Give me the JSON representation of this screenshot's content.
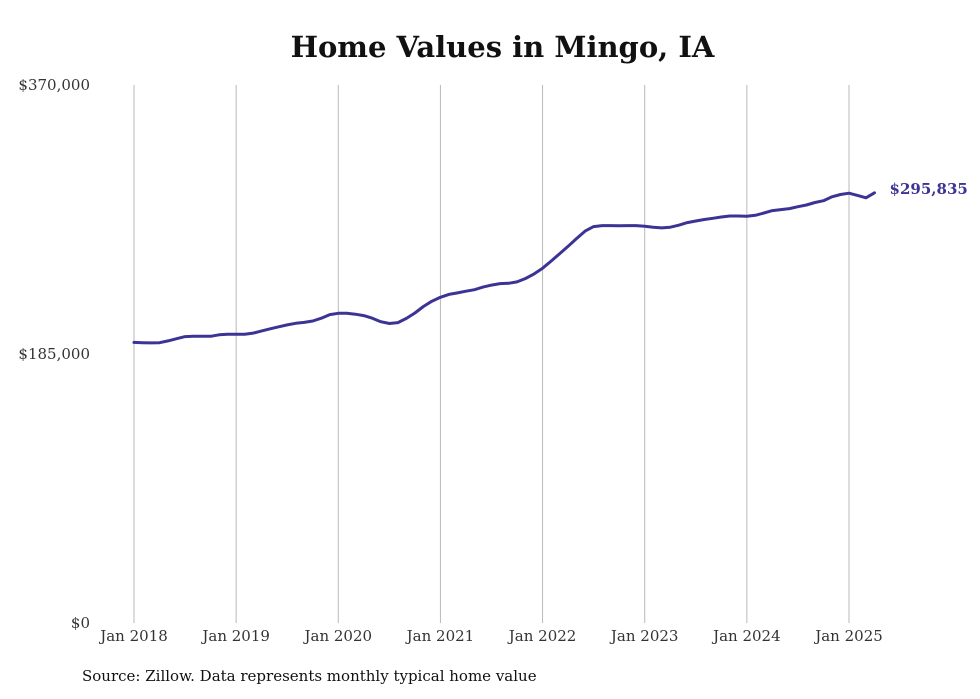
{
  "chart_data": {
    "type": "line",
    "title": "Home Values in Mingo, IA",
    "xlabel": "",
    "ylabel": "",
    "ylim": [
      0,
      370000
    ],
    "y_ticks": [
      0,
      185000,
      370000
    ],
    "y_tick_labels": [
      "$0",
      "$185,000",
      "$370,000"
    ],
    "x_tick_labels": [
      "Jan 2018",
      "Jan 2019",
      "Jan 2020",
      "Jan 2021",
      "Jan 2022",
      "Jan 2023",
      "Jan 2024",
      "Jan 2025"
    ],
    "xlim": [
      "2018-01",
      "2025-04"
    ],
    "grid": "vertical",
    "legend": "none",
    "line_color": "#3b3494",
    "end_label": "$295,835",
    "series": [
      {
        "x": [
          "2018-01",
          "2018-02",
          "2018-03",
          "2018-04",
          "2018-05",
          "2018-06",
          "2018-07",
          "2018-08",
          "2018-09",
          "2018-10",
          "2018-11",
          "2018-12",
          "2019-01",
          "2019-02",
          "2019-03",
          "2019-04",
          "2019-05",
          "2019-06",
          "2019-07",
          "2019-08",
          "2019-09",
          "2019-10",
          "2019-11",
          "2019-12",
          "2020-01",
          "2020-02",
          "2020-03",
          "2020-04",
          "2020-05",
          "2020-06",
          "2020-07",
          "2020-08",
          "2020-09",
          "2020-10",
          "2020-11",
          "2020-12",
          "2021-01",
          "2021-02",
          "2021-03",
          "2021-04",
          "2021-05",
          "2021-06",
          "2021-07",
          "2021-08",
          "2021-09",
          "2021-10",
          "2021-11",
          "2021-12",
          "2022-01",
          "2022-02",
          "2022-03",
          "2022-04",
          "2022-05",
          "2022-06",
          "2022-07",
          "2022-08",
          "2022-09",
          "2022-10",
          "2022-11",
          "2022-12",
          "2023-01",
          "2023-02",
          "2023-03",
          "2023-04",
          "2023-05",
          "2023-06",
          "2023-07",
          "2023-08",
          "2023-09",
          "2023-10",
          "2023-11",
          "2023-12",
          "2024-01",
          "2024-02",
          "2024-03",
          "2024-04",
          "2024-05",
          "2024-06",
          "2024-07",
          "2024-08",
          "2024-09",
          "2024-10",
          "2024-11",
          "2024-12",
          "2025-01",
          "2025-02",
          "2025-03",
          "2025-04"
        ],
        "values": [
          193000,
          192800,
          192600,
          192800,
          194000,
          195500,
          197000,
          197200,
          197200,
          197200,
          198200,
          198600,
          198600,
          198600,
          199400,
          200900,
          202300,
          203700,
          205000,
          206100,
          206700,
          207700,
          209600,
          212100,
          213000,
          213000,
          212400,
          211400,
          209600,
          207200,
          206000,
          206600,
          209500,
          213200,
          217700,
          221300,
          224000,
          226000,
          227000,
          228200,
          229200,
          231000,
          232400,
          233400,
          233600,
          234600,
          236900,
          240100,
          244000,
          248900,
          254000,
          259100,
          264400,
          269500,
          272600,
          273300,
          273300,
          273200,
          273300,
          273300,
          272900,
          272200,
          271700,
          272200,
          273600,
          275400,
          276500,
          277500,
          278300,
          279200,
          279900,
          279900,
          279800,
          280400,
          282000,
          283600,
          284300,
          285000,
          286300,
          287500,
          289200,
          290400,
          293100,
          294700,
          295600,
          294100,
          292400,
          295835
        ]
      }
    ]
  },
  "source_note": "Source: Zillow. Data represents monthly typical home value"
}
